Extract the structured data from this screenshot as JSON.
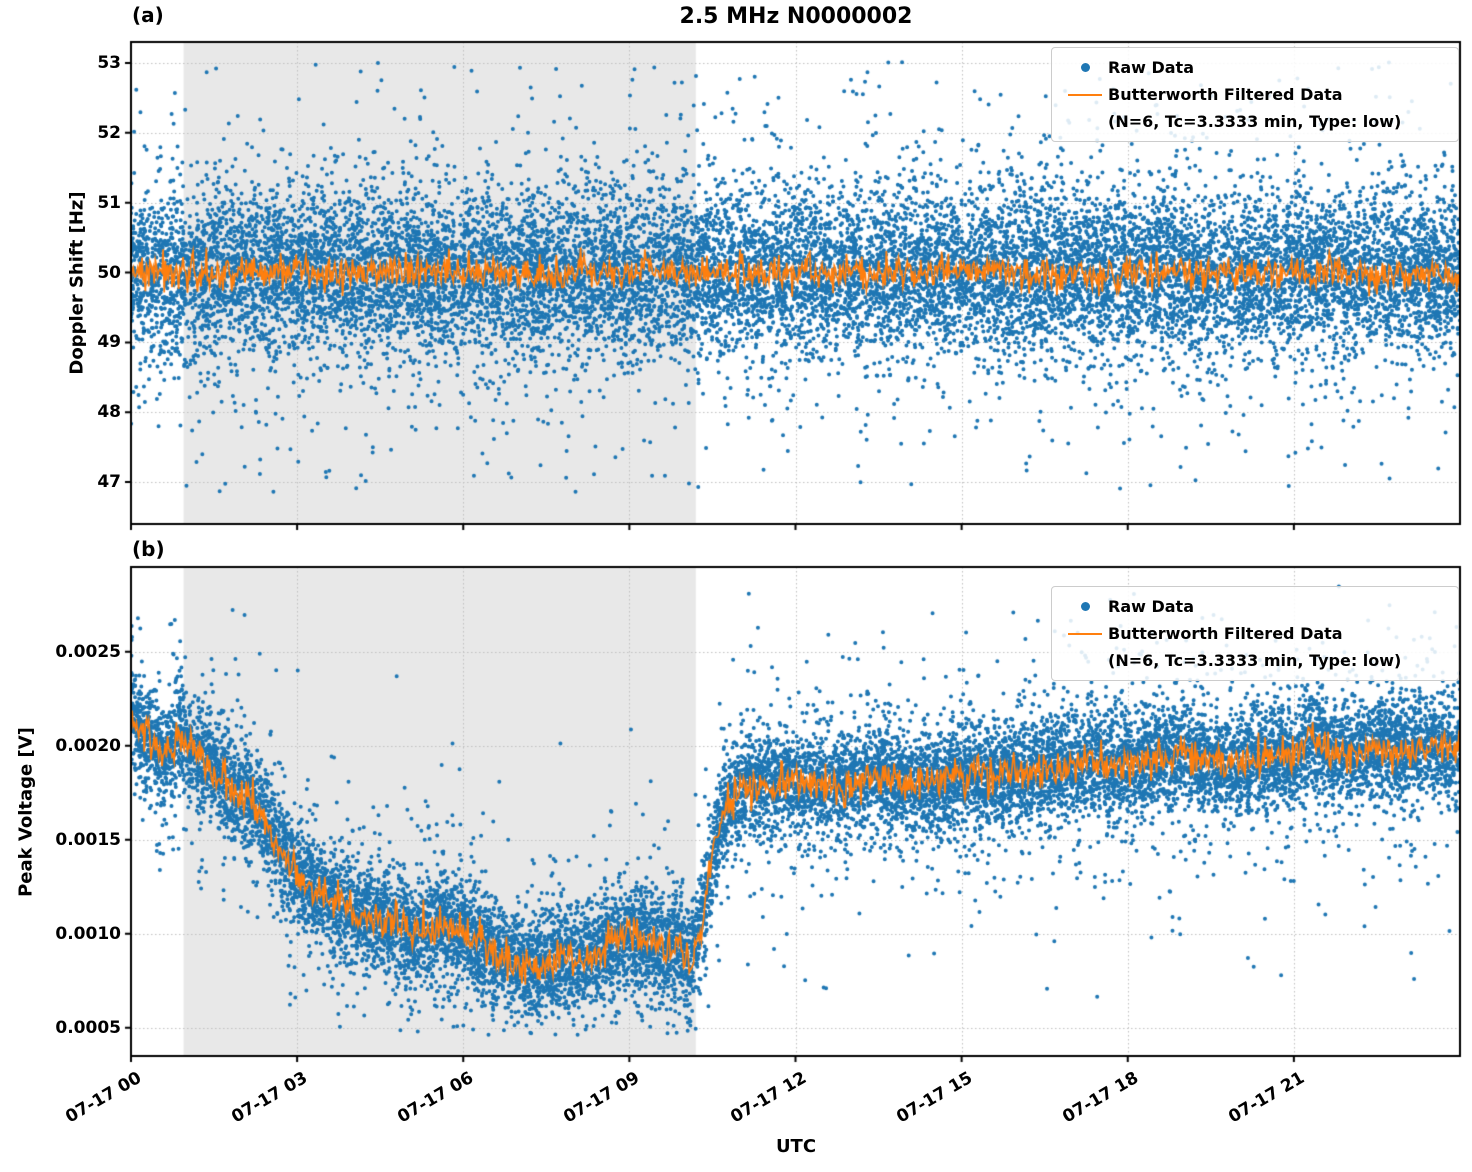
{
  "figure": {
    "title": "2.5 MHz N0000002",
    "xlabel": "UTC",
    "colors": {
      "raw": "#1f77b4",
      "filtered": "#ff7f0e",
      "shade": "#e8e8e8",
      "grid": "#c0c0c0",
      "spine": "#000000",
      "background": "#ffffff"
    },
    "legend": {
      "raw_label": "Raw Data",
      "filtered_label": "Butterworth Filtered Data",
      "filtered_sublabel": "(N=6, Tc=3.3333 min, Type: low)"
    }
  },
  "chart_data": [
    {
      "panel_tag": "(a)",
      "type": "scatter",
      "title": "2.5 MHz N0000002",
      "ylabel": "Doppler Shift [Hz]",
      "xlabel": "UTC",
      "ylim": [
        46.4,
        53.3
      ],
      "yticks": {
        "values": [
          47,
          48,
          49,
          50,
          51,
          52,
          53
        ],
        "labels": [
          "47",
          "48",
          "49",
          "50",
          "51",
          "52",
          "53"
        ]
      },
      "xlim_hours": [
        0,
        24
      ],
      "xticks": {
        "hours": [
          0,
          3,
          6,
          9,
          12,
          15,
          18,
          21
        ],
        "labels": [
          "07-17 00",
          "07-17 03",
          "07-17 06",
          "07-17 09",
          "07-17 12",
          "07-17 15",
          "07-17 18",
          "07-17 21"
        ]
      },
      "show_xtick_labels": false,
      "shaded_region_hours": [
        0.95,
        10.2
      ],
      "grid": true,
      "legend_position": "upper right",
      "series": [
        {
          "name": "Raw Data",
          "type": "scatter",
          "n_points": 16000,
          "band": {
            "center": 50.0,
            "core_frac": 0.78,
            "core_sigma": 0.55,
            "wide_frac": 0.19,
            "wide_sigma": 0.95,
            "outlier_min": 46.85,
            "outlier_max": 53.05,
            "clip_min": 46.7,
            "clip_max": 53.1
          }
        },
        {
          "name": "Butterworth Filtered Data",
          "type": "line",
          "line": {
            "center": 50.0,
            "noise_sigma": 0.12,
            "clip_min": 49.5,
            "clip_max": 50.55,
            "samples_per_hour": 50
          }
        }
      ]
    },
    {
      "panel_tag": "(b)",
      "type": "scatter",
      "ylabel": "Peak Voltage [V]",
      "xlabel": "UTC",
      "ylim": [
        0.00035,
        0.00295
      ],
      "yticks": {
        "values": [
          0.0005,
          0.001,
          0.0015,
          0.002,
          0.0025
        ],
        "labels": [
          "0.0005",
          "0.0010",
          "0.0015",
          "0.0020",
          "0.0025"
        ]
      },
      "xlim_hours": [
        0,
        24
      ],
      "xticks": {
        "hours": [
          0,
          3,
          6,
          9,
          12,
          15,
          18,
          21
        ],
        "labels": [
          "07-17 00",
          "07-17 03",
          "07-17 06",
          "07-17 09",
          "07-17 12",
          "07-17 15",
          "07-17 18",
          "07-17 21"
        ]
      },
      "show_xtick_labels": true,
      "shaded_region_hours": [
        0.95,
        10.2
      ],
      "grid": true,
      "legend_position": "upper right",
      "trend": [
        [
          0,
          0.00215
        ],
        [
          0.3,
          0.00205
        ],
        [
          0.6,
          0.00195
        ],
        [
          0.9,
          0.00205
        ],
        [
          1.2,
          0.00195
        ],
        [
          1.5,
          0.00185
        ],
        [
          2,
          0.00175
        ],
        [
          2.3,
          0.00165
        ],
        [
          2.6,
          0.0015
        ],
        [
          2.9,
          0.00135
        ],
        [
          3.2,
          0.00125
        ],
        [
          3.5,
          0.0012
        ],
        [
          4,
          0.00112
        ],
        [
          4.5,
          0.00108
        ],
        [
          5,
          0.001
        ],
        [
          5.3,
          0.00103
        ],
        [
          5.6,
          0.00105
        ],
        [
          6,
          0.00102
        ],
        [
          6.3,
          0.00095
        ],
        [
          6.6,
          0.00088
        ],
        [
          7,
          0.00085
        ],
        [
          7.4,
          0.00082
        ],
        [
          7.8,
          0.00087
        ],
        [
          8.2,
          0.00085
        ],
        [
          8.6,
          0.00095
        ],
        [
          9,
          0.001
        ],
        [
          9.3,
          0.00097
        ],
        [
          9.6,
          0.00093
        ],
        [
          9.9,
          0.00095
        ],
        [
          10.1,
          0.00085
        ],
        [
          10.3,
          0.00105
        ],
        [
          10.5,
          0.0014
        ],
        [
          10.7,
          0.00165
        ],
        [
          10.9,
          0.00175
        ],
        [
          11.2,
          0.0018
        ],
        [
          11.5,
          0.00178
        ],
        [
          12,
          0.00182
        ],
        [
          12.5,
          0.00178
        ],
        [
          13,
          0.0018
        ],
        [
          13.5,
          0.00183
        ],
        [
          14,
          0.0018
        ],
        [
          14.5,
          0.00178
        ],
        [
          15,
          0.00185
        ],
        [
          15.5,
          0.00183
        ],
        [
          16,
          0.00185
        ],
        [
          16.5,
          0.00188
        ],
        [
          17,
          0.00187
        ],
        [
          17.3,
          0.00195
        ],
        [
          17.6,
          0.00188
        ],
        [
          18,
          0.0019
        ],
        [
          18.5,
          0.00192
        ],
        [
          19,
          0.00195
        ],
        [
          19.5,
          0.00192
        ],
        [
          20,
          0.0019
        ],
        [
          20.5,
          0.00195
        ],
        [
          21,
          0.00193
        ],
        [
          21.3,
          0.00205
        ],
        [
          21.6,
          0.00198
        ],
        [
          22,
          0.00195
        ],
        [
          22.5,
          0.002
        ],
        [
          23,
          0.00198
        ],
        [
          23.5,
          0.002
        ],
        [
          24,
          0.00198
        ]
      ],
      "series": [
        {
          "name": "Raw Data",
          "type": "scatter",
          "n_points": 16000,
          "band": {
            "use_trend": true,
            "core_frac": 0.8,
            "core_sigma": 0.00013,
            "wide_frac": 0.17,
            "wide_sigma": 0.00028,
            "tail_sigma": 0.00055,
            "clip_min": 0.00046,
            "clip_max": 0.00285
          }
        },
        {
          "name": "Butterworth Filtered Data",
          "type": "line",
          "line": {
            "use_trend": true,
            "noise_sigma": 5e-05,
            "samples_per_hour": 50
          }
        }
      ]
    }
  ]
}
